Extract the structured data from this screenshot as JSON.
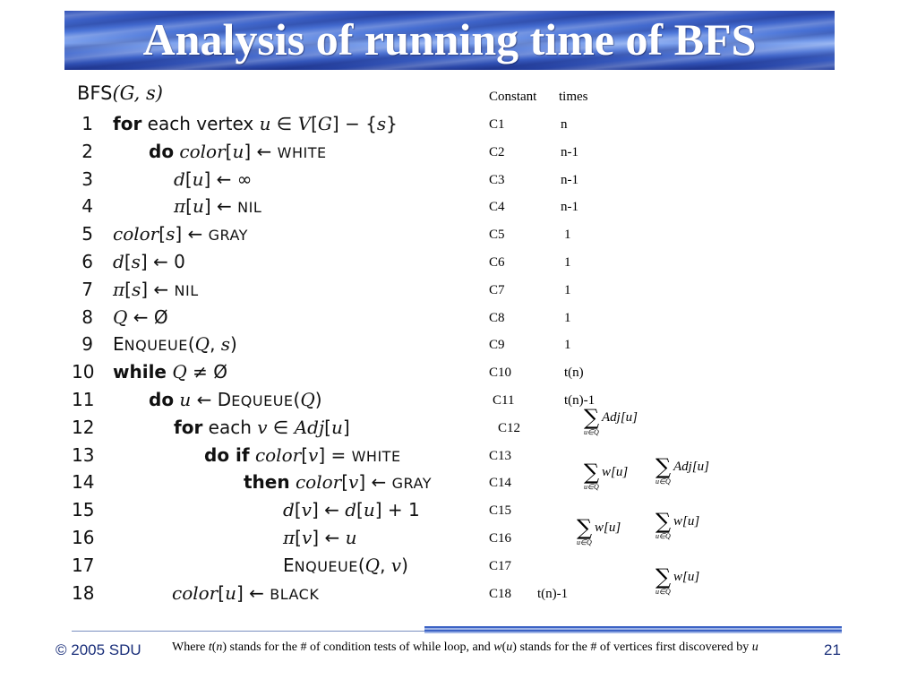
{
  "title": "Analysis of running time of BFS",
  "code": {
    "header_name": "BFS",
    "header_args": "(G, s)",
    "lines": [
      {
        "num": "1",
        "segs": [
          {
            "t": "for",
            "k": "kw"
          },
          {
            "t": " each vertex ",
            "k": ""
          },
          {
            "t": "u",
            "k": "it"
          },
          {
            "t": " ∈ ",
            "k": ""
          },
          {
            "t": "V",
            "k": "it"
          },
          {
            "t": "[",
            "k": ""
          },
          {
            "t": "G",
            "k": "it"
          },
          {
            "t": "] − {",
            "k": ""
          },
          {
            "t": "s",
            "k": "it"
          },
          {
            "t": "}",
            "k": ""
          }
        ]
      },
      {
        "num": "2",
        "segs": [
          {
            "t": "do",
            "k": "kw"
          },
          {
            "t": " ",
            "k": ""
          },
          {
            "t": "color",
            "k": "it"
          },
          {
            "t": "[",
            "k": ""
          },
          {
            "t": "u",
            "k": "it"
          },
          {
            "t": "] ← ",
            "k": ""
          },
          {
            "t": "WHITE",
            "k": "sc"
          }
        ]
      },
      {
        "num": "3",
        "segs": [
          {
            "t": "d",
            "k": "it"
          },
          {
            "t": "[",
            "k": ""
          },
          {
            "t": "u",
            "k": "it"
          },
          {
            "t": "] ← ∞",
            "k": ""
          }
        ]
      },
      {
        "num": "4",
        "segs": [
          {
            "t": "π",
            "k": "it"
          },
          {
            "t": "[",
            "k": ""
          },
          {
            "t": "u",
            "k": "it"
          },
          {
            "t": "] ← ",
            "k": ""
          },
          {
            "t": "NIL",
            "k": "sc"
          }
        ]
      },
      {
        "num": "5",
        "segs": [
          {
            "t": "color",
            "k": "it"
          },
          {
            "t": "[",
            "k": ""
          },
          {
            "t": "s",
            "k": "it"
          },
          {
            "t": "] ← ",
            "k": ""
          },
          {
            "t": "GRAY",
            "k": "sc"
          }
        ]
      },
      {
        "num": "6",
        "segs": [
          {
            "t": "d",
            "k": "it"
          },
          {
            "t": "[",
            "k": ""
          },
          {
            "t": "s",
            "k": "it"
          },
          {
            "t": "] ← 0",
            "k": ""
          }
        ]
      },
      {
        "num": "7",
        "segs": [
          {
            "t": "π",
            "k": "it"
          },
          {
            "t": "[",
            "k": ""
          },
          {
            "t": "s",
            "k": "it"
          },
          {
            "t": "] ← ",
            "k": ""
          },
          {
            "t": "NIL",
            "k": "sc"
          }
        ]
      },
      {
        "num": "8",
        "segs": [
          {
            "t": "Q",
            "k": "it"
          },
          {
            "t": " ← Ø",
            "k": ""
          }
        ]
      },
      {
        "num": "9",
        "segs": [
          {
            "t": "E",
            "k": ""
          },
          {
            "t": "NQUEUE",
            "k": "sc"
          },
          {
            "t": "(",
            "k": ""
          },
          {
            "t": "Q",
            "k": "it"
          },
          {
            "t": ", ",
            "k": ""
          },
          {
            "t": "s",
            "k": "it"
          },
          {
            "t": ")",
            "k": ""
          }
        ]
      },
      {
        "num": "10",
        "segs": [
          {
            "t": "while",
            "k": "kw"
          },
          {
            "t": " ",
            "k": ""
          },
          {
            "t": "Q",
            "k": "it"
          },
          {
            "t": " ≠ Ø",
            "k": ""
          }
        ]
      },
      {
        "num": "11",
        "segs": [
          {
            "t": "do",
            "k": "kw"
          },
          {
            "t": " ",
            "k": ""
          },
          {
            "t": "u",
            "k": "it"
          },
          {
            "t": " ← D",
            "k": ""
          },
          {
            "t": "EQUEUE",
            "k": "sc"
          },
          {
            "t": "(",
            "k": ""
          },
          {
            "t": "Q",
            "k": "it"
          },
          {
            "t": ")",
            "k": ""
          }
        ]
      },
      {
        "num": "12",
        "segs": [
          {
            "t": "for",
            "k": "kw"
          },
          {
            "t": " each ",
            "k": ""
          },
          {
            "t": "v",
            "k": "it"
          },
          {
            "t": " ∈ ",
            "k": ""
          },
          {
            "t": "Adj",
            "k": "it"
          },
          {
            "t": "[",
            "k": ""
          },
          {
            "t": "u",
            "k": "it"
          },
          {
            "t": "]",
            "k": ""
          }
        ]
      },
      {
        "num": "13",
        "segs": [
          {
            "t": "do if",
            "k": "kw"
          },
          {
            "t": " ",
            "k": ""
          },
          {
            "t": "color",
            "k": "it"
          },
          {
            "t": "[",
            "k": ""
          },
          {
            "t": "v",
            "k": "it"
          },
          {
            "t": "] = ",
            "k": ""
          },
          {
            "t": "WHITE",
            "k": "sc"
          }
        ]
      },
      {
        "num": "14",
        "segs": [
          {
            "t": "then",
            "k": "kw"
          },
          {
            "t": " ",
            "k": ""
          },
          {
            "t": "color",
            "k": "it"
          },
          {
            "t": "[",
            "k": ""
          },
          {
            "t": "v",
            "k": "it"
          },
          {
            "t": "] ← ",
            "k": ""
          },
          {
            "t": "GRAY",
            "k": "sc"
          }
        ]
      },
      {
        "num": "15",
        "segs": [
          {
            "t": "d",
            "k": "it"
          },
          {
            "t": "[",
            "k": ""
          },
          {
            "t": "v",
            "k": "it"
          },
          {
            "t": "] ← ",
            "k": ""
          },
          {
            "t": "d",
            "k": "it"
          },
          {
            "t": "[",
            "k": ""
          },
          {
            "t": "u",
            "k": "it"
          },
          {
            "t": "] + 1",
            "k": ""
          }
        ]
      },
      {
        "num": "16",
        "segs": [
          {
            "t": "π",
            "k": "it"
          },
          {
            "t": "[",
            "k": ""
          },
          {
            "t": "v",
            "k": "it"
          },
          {
            "t": "] ← ",
            "k": ""
          },
          {
            "t": "u",
            "k": "it"
          }
        ]
      },
      {
        "num": "17",
        "segs": [
          {
            "t": "E",
            "k": ""
          },
          {
            "t": "NQUEUE",
            "k": "sc"
          },
          {
            "t": "(",
            "k": ""
          },
          {
            "t": "Q",
            "k": "it"
          },
          {
            "t": ", ",
            "k": ""
          },
          {
            "t": "v",
            "k": "it"
          },
          {
            "t": ")",
            "k": ""
          }
        ]
      },
      {
        "num": "18",
        "segs": [
          {
            "t": "color",
            "k": "it"
          },
          {
            "t": "[",
            "k": ""
          },
          {
            "t": "u",
            "k": "it"
          },
          {
            "t": "] ← ",
            "k": ""
          },
          {
            "t": "BLACK",
            "k": "sc"
          }
        ]
      }
    ]
  },
  "cost_table": {
    "header_constant": "Constant",
    "header_times": "times",
    "rows": [
      {
        "c": "C1",
        "t": "n"
      },
      {
        "c": "C2",
        "t": "n-1"
      },
      {
        "c": "C3",
        "t": "n-1"
      },
      {
        "c": "C4",
        "t": "n-1"
      },
      {
        "c": "C5",
        "t": "1"
      },
      {
        "c": "C6",
        "t": "1"
      },
      {
        "c": "C7",
        "t": "1"
      },
      {
        "c": "C8",
        "t": "1"
      },
      {
        "c": "C9",
        "t": "1"
      },
      {
        "c": "C10",
        "t": "t(n)"
      },
      {
        "c": "C11",
        "t": "t(n)-1"
      },
      {
        "c": "C12",
        "sum": "Adj[u]",
        "sub": "u∈Q"
      },
      {
        "c": "C13",
        "sum": "Adj[u]",
        "sub": "u∈Q"
      },
      {
        "c": "C14",
        "sum": "w[u]",
        "sub": "u∈Q"
      },
      {
        "c": "C15",
        "sum": "w[u]",
        "sub": "u∈Q"
      },
      {
        "c": "C16",
        "sum": "w[u]",
        "sub": "u∈Q"
      },
      {
        "c": "C17",
        "sum": "w[u]",
        "sub": "u∈Q"
      },
      {
        "c": "C18",
        "t": "t(n)-1"
      }
    ]
  },
  "footer": {
    "copyright": "© 2005 SDU",
    "note_parts": [
      "Where ",
      "t",
      "(",
      "n",
      ") stands for the # of condition tests of while loop, and ",
      "w",
      "(",
      "u",
      ") stands for the # of vertices first discovered by ",
      "u"
    ],
    "page_number": "21"
  },
  "colors": {
    "banner": "#3a5fc6",
    "footer_text": "#1a2f7a"
  }
}
